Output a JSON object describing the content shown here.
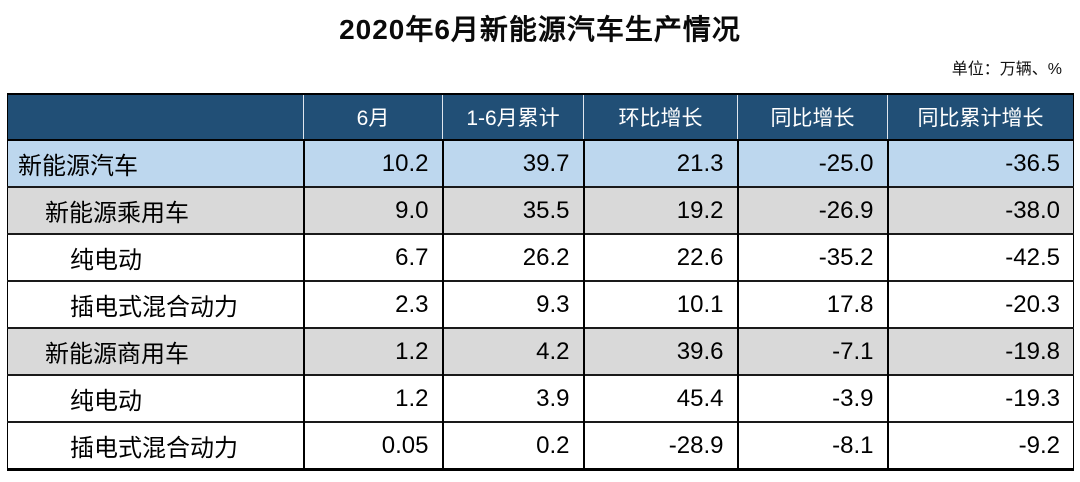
{
  "page": {
    "title": "2020年6月新能源汽车生产情况",
    "unit_note": "单位：万辆、%"
  },
  "colors": {
    "header_bg": "#214F76",
    "header_text": "#FFFFFF",
    "row_highlight_blue": "#BDD7EE",
    "row_band_gray": "#D9D9D9",
    "row_plain": "#FFFFFF",
    "border": "#000000"
  },
  "chart_data": {
    "type": "table",
    "title": "2020年6月新能源汽车生产情况",
    "unit_note": "单位：万辆、%",
    "columns": [
      "",
      "6月",
      "1-6月累计",
      "环比增长",
      "同比增长",
      "同比累计增长"
    ],
    "rows": [
      {
        "label": "新能源汽车",
        "indent": 0,
        "style": "highlight-blue",
        "values": [
          "10.2",
          "39.7",
          "21.3",
          "-25.0",
          "-36.5"
        ]
      },
      {
        "label": "新能源乘用车",
        "indent": 1,
        "style": "band-gray",
        "values": [
          "9.0",
          "35.5",
          "19.2",
          "-26.9",
          "-38.0"
        ]
      },
      {
        "label": "纯电动",
        "indent": 2,
        "style": "plain",
        "values": [
          "6.7",
          "26.2",
          "22.6",
          "-35.2",
          "-42.5"
        ]
      },
      {
        "label": "插电式混合动力",
        "indent": 2,
        "style": "plain",
        "values": [
          "2.3",
          "9.3",
          "10.1",
          "17.8",
          "-20.3"
        ]
      },
      {
        "label": "新能源商用车",
        "indent": 1,
        "style": "band-gray",
        "values": [
          "1.2",
          "4.2",
          "39.6",
          "-7.1",
          "-19.8"
        ]
      },
      {
        "label": "纯电动",
        "indent": 2,
        "style": "plain",
        "values": [
          "1.2",
          "3.9",
          "45.4",
          "-3.9",
          "-19.3"
        ]
      },
      {
        "label": "插电式混合动力",
        "indent": 2,
        "style": "plain",
        "values": [
          "0.05",
          "0.2",
          "-28.9",
          "-8.1",
          "-9.2"
        ]
      }
    ]
  }
}
